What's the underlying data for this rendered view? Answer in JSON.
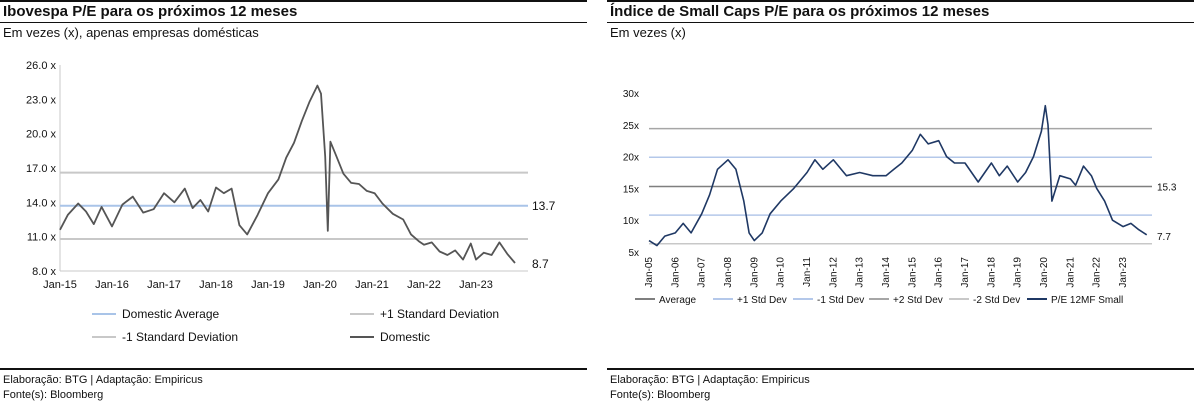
{
  "panels": [
    {
      "title": "Ibovespa P/E para os próximos 12 meses",
      "subtitle": "Em vezes (x), apenas empresas domésticas",
      "footer_line1": "Elaboração: BTG | Adaptação: Empiricus",
      "footer_line2": "Fonte(s): Bloomberg"
    },
    {
      "title": "Índice de Small Caps P/E para os próximos 12 meses",
      "subtitle": "Em vezes (x)",
      "footer_line1": "Elaboração: BTG | Adaptação: Empiricus",
      "footer_line2": "Fonte(s): Bloomberg"
    }
  ],
  "chart_data": [
    {
      "type": "line",
      "ylim": [
        8,
        26
      ],
      "y_ticks": [
        8,
        11,
        14,
        17,
        20,
        23,
        26
      ],
      "y_tick_labels": [
        "8.0 x",
        "11.0 x",
        "14.0 x",
        "17.0 x",
        "20.0 x",
        "23.0 x",
        "26.0 x"
      ],
      "xlim": [
        2015.0,
        2024.0
      ],
      "x_ticks": [
        2015,
        2016,
        2017,
        2018,
        2019,
        2020,
        2021,
        2022,
        2023
      ],
      "x_tick_labels": [
        "Jan-15",
        "Jan-16",
        "Jan-17",
        "Jan-18",
        "Jan-19",
        "Jan-20",
        "Jan-21",
        "Jan-22",
        "Jan-23"
      ],
      "series": [
        {
          "name": "Domestic Average",
          "color": "#a9c4e8",
          "values": [
            13.7,
            13.7
          ]
        },
        {
          "name": "+1 Standard Deviation",
          "color": "#c8c8c8",
          "values": [
            16.6,
            16.6
          ]
        },
        {
          "name": "-1 Standard Deviation",
          "color": "#c8c8c8",
          "values": [
            10.8,
            10.8
          ]
        },
        {
          "name": "Domestic",
          "color": "#555555",
          "x": [
            2015.0,
            2015.15,
            2015.35,
            2015.5,
            2015.65,
            2015.8,
            2016.0,
            2016.2,
            2016.4,
            2016.6,
            2016.8,
            2017.0,
            2017.2,
            2017.4,
            2017.55,
            2017.7,
            2017.85,
            2018.0,
            2018.15,
            2018.3,
            2018.45,
            2018.6,
            2018.8,
            2019.0,
            2019.2,
            2019.35,
            2019.5,
            2019.65,
            2019.8,
            2019.95,
            2020.02,
            2020.1,
            2020.15,
            2020.2,
            2020.3,
            2020.45,
            2020.6,
            2020.75,
            2020.9,
            2021.05,
            2021.2,
            2021.4,
            2021.6,
            2021.75,
            2021.9,
            2022.0,
            2022.15,
            2022.3,
            2022.45,
            2022.6,
            2022.75,
            2022.9,
            2023.0,
            2023.15,
            2023.3,
            2023.45,
            2023.6,
            2023.75
          ],
          "values": [
            11.6,
            12.9,
            13.9,
            13.2,
            12.1,
            13.6,
            11.9,
            13.8,
            14.5,
            13.1,
            13.4,
            14.8,
            14.0,
            15.2,
            13.5,
            14.2,
            13.2,
            15.3,
            14.8,
            15.2,
            12.0,
            11.2,
            12.9,
            14.8,
            16.0,
            17.9,
            19.2,
            21.1,
            22.8,
            24.2,
            23.5,
            18.0,
            11.5,
            19.3,
            18.2,
            16.5,
            15.7,
            15.6,
            15.0,
            14.8,
            13.9,
            13.0,
            12.5,
            11.2,
            10.6,
            10.3,
            10.5,
            9.7,
            9.4,
            9.8,
            9.0,
            10.4,
            9.0,
            9.6,
            9.4,
            10.5,
            9.5,
            8.7
          ]
        }
      ],
      "annotations": [
        "13.7",
        "8.7"
      ],
      "legend": [
        "Domestic Average",
        "+1 Standard Deviation",
        "-1 Standard Deviation",
        "Domestic"
      ],
      "legend_position": "bottom"
    },
    {
      "type": "line",
      "ylim": [
        5,
        30
      ],
      "y_ticks": [
        5,
        10,
        15,
        20,
        25,
        30
      ],
      "y_tick_labels": [
        "5x",
        "10x",
        "15x",
        "20x",
        "25x",
        "30x"
      ],
      "xlim": [
        2005.0,
        2024.1
      ],
      "x_ticks": [
        2005,
        2006,
        2007,
        2008,
        2009,
        2010,
        2011,
        2012,
        2013,
        2014,
        2015,
        2016,
        2017,
        2018,
        2019,
        2020,
        2021,
        2022,
        2023
      ],
      "x_tick_labels": [
        "Jan-05",
        "Jan-06",
        "Jan-07",
        "Jan-08",
        "Jan-09",
        "Jan-10",
        "Jan-11",
        "Jan-12",
        "Jan-13",
        "Jan-14",
        "Jan-15",
        "Jan-16",
        "Jan-17",
        "Jan-18",
        "Jan-19",
        "Jan-20",
        "Jan-21",
        "Jan-22",
        "Jan-23"
      ],
      "series": [
        {
          "name": "Average",
          "color": "#7f7f7f",
          "values": [
            15.3,
            15.3
          ]
        },
        {
          "name": "+1 Std Dev",
          "color": "#b4c8ea",
          "values": [
            19.9,
            19.9
          ]
        },
        {
          "name": "-1 Std Dev",
          "color": "#b4c8ea",
          "values": [
            10.8,
            10.8
          ]
        },
        {
          "name": "+2 Std Dev",
          "color": "#a6a6a6",
          "values": [
            24.4,
            24.4
          ]
        },
        {
          "name": "-2 Std Dev",
          "color": "#c8c8c8",
          "values": [
            6.3,
            6.3
          ]
        },
        {
          "name": "P/E 12MF Small",
          "color": "#1f3864",
          "x": [
            2005.0,
            2005.3,
            2005.6,
            2006.0,
            2006.3,
            2006.6,
            2007.0,
            2007.3,
            2007.6,
            2008.0,
            2008.3,
            2008.6,
            2008.8,
            2009.0,
            2009.3,
            2009.6,
            2010.0,
            2010.5,
            2011.0,
            2011.3,
            2011.6,
            2012.0,
            2012.5,
            2013.0,
            2013.5,
            2014.0,
            2014.3,
            2014.6,
            2015.0,
            2015.3,
            2015.6,
            2016.0,
            2016.3,
            2016.6,
            2017.0,
            2017.5,
            2018.0,
            2018.3,
            2018.6,
            2019.0,
            2019.3,
            2019.6,
            2019.9,
            2020.05,
            2020.15,
            2020.3,
            2020.6,
            2021.0,
            2021.2,
            2021.5,
            2021.8,
            2022.0,
            2022.3,
            2022.6,
            2023.0,
            2023.3,
            2023.6,
            2023.9
          ],
          "values": [
            6.8,
            6.0,
            7.5,
            8.0,
            9.5,
            8.0,
            11.0,
            14.0,
            18.0,
            19.5,
            18.0,
            13.0,
            8.0,
            6.8,
            8.0,
            11.0,
            13.0,
            15.0,
            17.5,
            19.5,
            18.0,
            19.5,
            17.0,
            17.5,
            17.0,
            17.0,
            18.0,
            19.0,
            21.0,
            23.5,
            22.0,
            22.5,
            20.0,
            19.0,
            19.0,
            16.0,
            19.0,
            17.0,
            18.5,
            16.0,
            17.5,
            20.0,
            24.0,
            28.0,
            25.0,
            13.0,
            17.0,
            16.5,
            15.5,
            18.5,
            17.0,
            15.0,
            13.0,
            10.0,
            9.0,
            9.5,
            8.5,
            7.7
          ]
        }
      ],
      "annotations": [
        "15.3",
        "7.7"
      ],
      "legend": [
        "Average",
        "+1 Std Dev",
        "-1 Std Dev",
        "+2 Std Dev",
        "-2 Std Dev",
        "P/E 12MF Small"
      ],
      "legend_position": "bottom"
    }
  ]
}
